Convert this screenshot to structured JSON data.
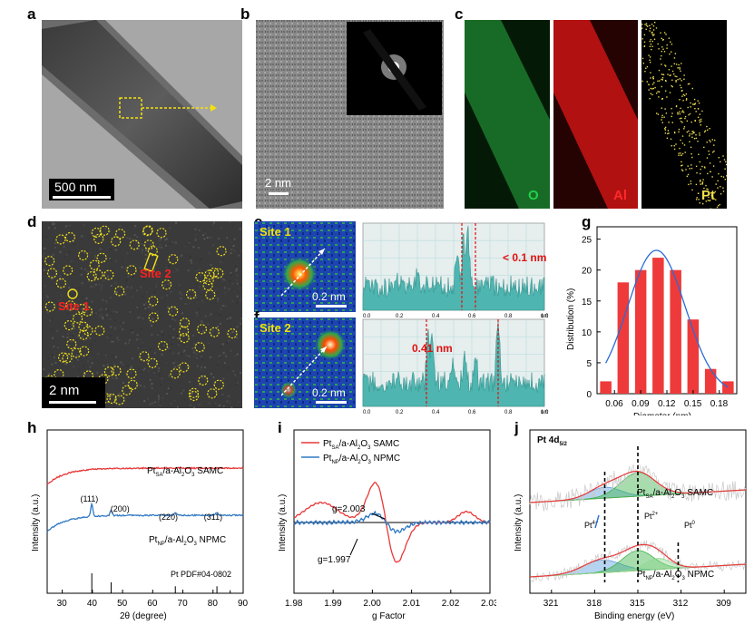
{
  "panels": {
    "a": {
      "label": "a",
      "scale": "500 nm"
    },
    "b": {
      "label": "b",
      "scale": "2 nm"
    },
    "c": {
      "label": "c",
      "maps": [
        "O",
        "Al",
        "Pt"
      ],
      "map_colors": [
        "#22d04a",
        "#ff2a2a",
        "#f2e24a"
      ]
    },
    "d": {
      "label": "d",
      "scale": "2 nm",
      "site1": "Site 1",
      "site2": "Site 2"
    },
    "e": {
      "label": "e",
      "site": "Site 1",
      "scale": "0.2 nm",
      "annotation": "< 0.1 nm",
      "xticks": [
        "0.0",
        "0.2",
        "0.4",
        "0.6",
        "0.8",
        "1.0"
      ],
      "xunit": "nm"
    },
    "f": {
      "label": "f",
      "site": "Site 2",
      "scale": "0.2 nm",
      "annotation": "0.41 nm",
      "xticks": [
        "0.0",
        "0.2",
        "0.4",
        "0.6",
        "0.8",
        "1.0"
      ],
      "xunit": "nm"
    },
    "g": {
      "label": "g"
    },
    "h": {
      "label": "h",
      "samc": "Pt",
      "samc_sub": "SA",
      "samc_rest": "/a-Al",
      "samc_sub2": "2",
      "samc_o": "O",
      "samc_sub3": "3",
      "samc_end": " SAMC",
      "npmc": "Pt",
      "npmc_sub": "NP",
      "npmc_rest": "/a-Al",
      "npmc_end": " NPMC",
      "peaks": [
        "(111)",
        "(200)",
        "(220)",
        "(311)"
      ],
      "pdf": "Pt PDF#04-0802"
    },
    "i": {
      "label": "i",
      "g1": "g=2.003",
      "g2": "g=1.997"
    },
    "j": {
      "label": "j",
      "title": "Pt 4d",
      "title_sub": "5/2",
      "states": [
        "Pt",
        "Pt",
        "Pt"
      ],
      "states_sup": [
        "4+",
        "2+",
        "0"
      ]
    }
  },
  "chart_data": [
    {
      "panel": "g",
      "type": "bar",
      "title": "",
      "xlabel": "Diameter (nm)",
      "ylabel": "Distribution (%)",
      "x": [
        0.05,
        0.07,
        0.09,
        0.11,
        0.13,
        0.15,
        0.17,
        0.19
      ],
      "values": [
        2,
        18,
        20,
        22,
        20,
        12,
        4,
        2
      ],
      "xticks": [
        0.06,
        0.09,
        0.12,
        0.15,
        0.18
      ],
      "xtick_labels": [
        "0.06",
        "0.09",
        "0.12",
        "0.15",
        "0.18"
      ],
      "yticks": [
        0,
        5,
        10,
        15,
        20,
        25
      ],
      "ytick_labels": [
        "0",
        "5",
        "10",
        "15",
        "20",
        "25"
      ],
      "xlim": [
        0.04,
        0.2
      ],
      "ylim": [
        0,
        27
      ],
      "fit": {
        "type": "gaussian",
        "mean": 0.108,
        "sigma": 0.033,
        "peak": 23.2
      }
    },
    {
      "panel": "h",
      "type": "line",
      "xlabel": "2θ (degree)",
      "ylabel": "Intensity (a.u.)",
      "xticks": [
        30,
        40,
        50,
        60,
        70,
        80,
        90
      ],
      "xtick_labels": [
        "30",
        "40",
        "50",
        "60",
        "70",
        "80",
        "90"
      ],
      "xlim": [
        25,
        90
      ],
      "series": [
        {
          "name": "Pt SA / a-Al2O3 SAMC",
          "color": "#e8393a"
        },
        {
          "name": "Pt NP / a-Al2O3 NPMC",
          "color": "#2f78c4"
        }
      ],
      "reference_lines": [
        39.8,
        46.2,
        67.5,
        81.3,
        85.7
      ],
      "reference_heights": [
        1.0,
        0.55,
        0.35,
        0.35,
        0.15
      ]
    },
    {
      "panel": "i",
      "type": "line",
      "xlabel": "g Factor",
      "ylabel": "Intensity (a.u.)",
      "xticks": [
        1.98,
        1.99,
        2.0,
        2.01,
        2.02,
        2.03
      ],
      "xtick_labels": [
        "1.98",
        "1.99",
        "2.00",
        "2.01",
        "2.02",
        "2.03"
      ],
      "xlim": [
        1.98,
        2.03
      ],
      "series": [
        {
          "name": "Pt SA / a-Al2O3 SAMC",
          "color": "#e8393a"
        },
        {
          "name": "Pt NP / a-Al2O3 NPMC",
          "color": "#2f78c4"
        }
      ]
    },
    {
      "panel": "j",
      "type": "line",
      "xlabel": "Binding energy (eV)",
      "ylabel": "Intensity (a.u.)",
      "xticks": [
        321,
        318,
        315,
        312,
        309
      ],
      "xtick_labels": [
        "321",
        "318",
        "315",
        "312",
        "309"
      ],
      "xlim": [
        322.5,
        307.5
      ],
      "reference_lines": [
        317.3,
        315.0,
        312.2
      ],
      "series": [
        {
          "name": "Pt SA / a-Al2O3 SAMC"
        },
        {
          "name": "Pt NP / a-Al2O3 NPMC"
        }
      ]
    }
  ]
}
